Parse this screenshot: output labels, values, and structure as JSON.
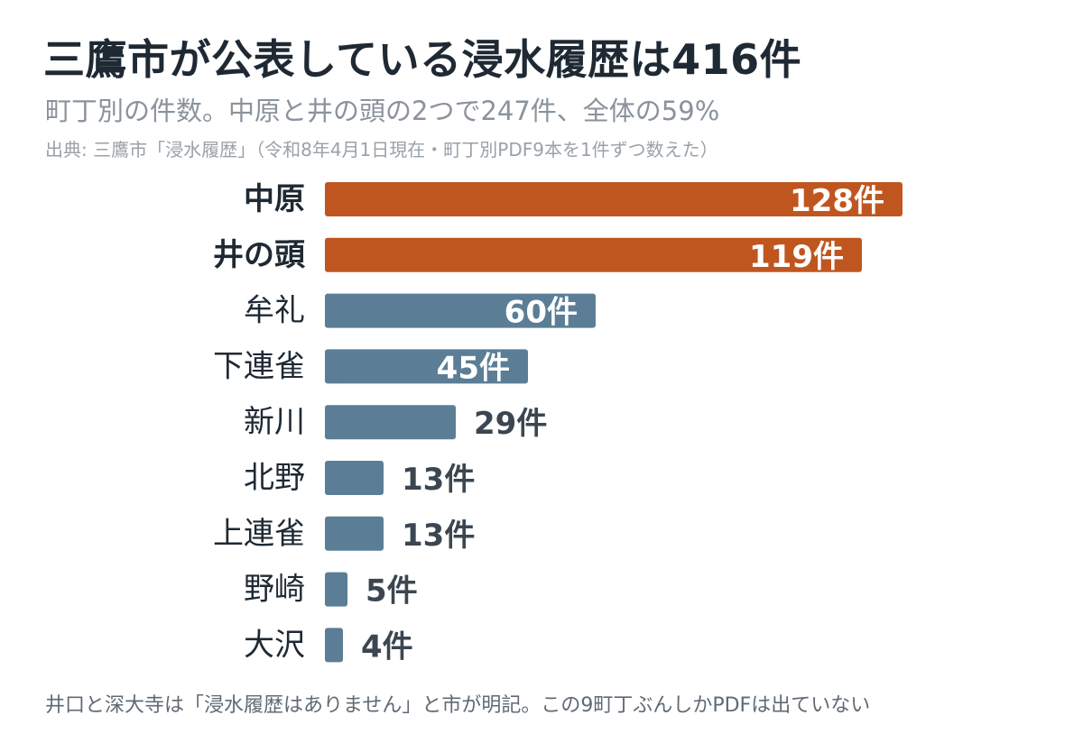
{
  "title": "三鷹市が公表している浸水履歴は416件",
  "subtitle": "町丁別の件数。中原と井の頭の2つで247件、全体の59%",
  "source": "出典: 三鷹市「浸水履歴」（令和8年4月1日現在・町丁別PDF9本を1件ずつ数えた）",
  "footnote": "井口と深大寺は「浸水履歴はありません」と市が明記。この9町丁ぶんしかPDFは出ていない",
  "colors": {
    "highlight": "#c0561f",
    "normal": "#5b7e96",
    "label_dark": "#1f2933",
    "value_outside": "#3b4650",
    "value_inside": "#ffffff"
  },
  "chart_data": {
    "type": "bar",
    "orientation": "horizontal",
    "unit": "件",
    "categories": [
      "中原",
      "井の頭",
      "牟礼",
      "下連雀",
      "新川",
      "北野",
      "上連雀",
      "野崎",
      "大沢"
    ],
    "values": [
      128,
      119,
      60,
      45,
      29,
      13,
      13,
      5,
      4
    ],
    "highlighted": [
      "中原",
      "井の頭"
    ],
    "xlim": [
      0,
      128
    ],
    "grid": false,
    "legend": "none"
  }
}
